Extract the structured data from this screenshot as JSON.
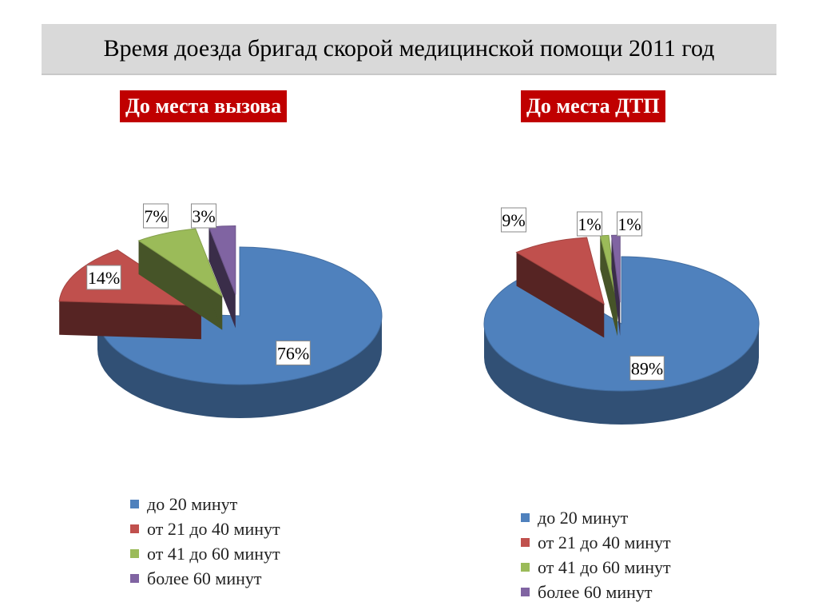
{
  "title": "Время доезда бригад скорой медицинской помощи 2011 год",
  "legend": [
    "до 20 минут",
    "от 21 до 40 минут",
    "от 41 до 60 минут",
    "более 60 минут"
  ],
  "colors": {
    "blue": "#4f81bd",
    "red": "#c0504d",
    "green": "#9bbb59",
    "purple": "#8064a2"
  },
  "chart_data": [
    {
      "type": "pie",
      "title": "До места вызова",
      "categories": [
        "до 20 минут",
        "от 21 до 40 минут",
        "от 41 до 60 минут",
        "более 60 минут"
      ],
      "values": [
        76,
        14,
        7,
        3
      ],
      "labels": [
        "76%",
        "14%",
        "7%",
        "3%"
      ],
      "style": "3d-exploded",
      "legend_position": "bottom"
    },
    {
      "type": "pie",
      "title": "До места ДТП",
      "categories": [
        "до 20 минут",
        "от 21 до 40 минут",
        "от 41 до 60 минут",
        "более 60 минут"
      ],
      "values": [
        89,
        9,
        1,
        1
      ],
      "labels": [
        "89%",
        "9%",
        "1%",
        "1%"
      ],
      "style": "3d-exploded",
      "legend_position": "bottom"
    }
  ]
}
